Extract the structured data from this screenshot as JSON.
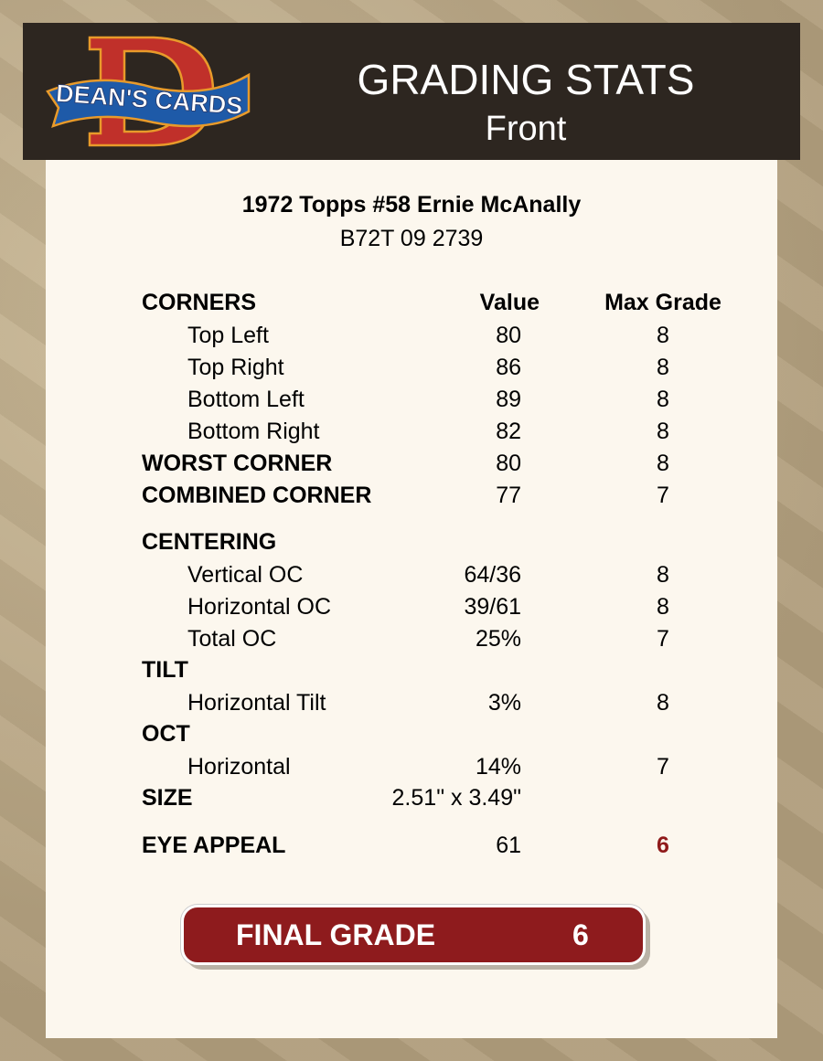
{
  "header": {
    "logo_text": "DEAN'S CARDS",
    "title": "GRADING STATS",
    "subtitle": "Front"
  },
  "card": {
    "name": "1972 Topps #58 Ernie McAnally",
    "code": "B72T 09 2739"
  },
  "columns": {
    "value": "Value",
    "max_grade": "Max Grade"
  },
  "stats": [
    {
      "label": "CORNERS",
      "type": "hdr"
    },
    {
      "label": "Top Left",
      "value": "80",
      "max": "8",
      "type": "sub"
    },
    {
      "label": "Top Right",
      "value": "86",
      "max": "8",
      "type": "sub"
    },
    {
      "label": "Bottom Left",
      "value": "89",
      "max": "8",
      "type": "sub"
    },
    {
      "label": "Bottom Right",
      "value": "82",
      "max": "8",
      "type": "sub"
    },
    {
      "label": "WORST CORNER",
      "value": "80",
      "max": "8",
      "type": "head"
    },
    {
      "label": "COMBINED CORNER",
      "value": "77",
      "max": "7",
      "type": "head"
    },
    {
      "label": "CENTERING",
      "type": "head"
    },
    {
      "label": "Vertical OC",
      "value": "64/36",
      "max": "8",
      "type": "sub"
    },
    {
      "label": "Horizontal OC",
      "value": "39/61",
      "max": "8",
      "type": "sub"
    },
    {
      "label": "Total OC",
      "value": "25%",
      "max": "7",
      "type": "sub"
    },
    {
      "label": "TILT",
      "type": "head"
    },
    {
      "label": "Horizontal Tilt",
      "value": "3%",
      "max": "8",
      "type": "sub"
    },
    {
      "label": "OCT",
      "type": "head"
    },
    {
      "label": "Horizontal",
      "value": "14%",
      "max": "7",
      "type": "sub"
    },
    {
      "label": "SIZE",
      "value": "2.51\" x 3.49\"",
      "type": "head"
    },
    {
      "label": "EYE APPEAL",
      "value": "61",
      "max": "6",
      "type": "head",
      "highlight": true
    }
  ],
  "final": {
    "label": "FINAL GRADE",
    "value": "6"
  },
  "colors": {
    "header_bg": "#2d2620",
    "panel_bg": "#fcf7ee",
    "accent_red": "#8e1b1d"
  }
}
